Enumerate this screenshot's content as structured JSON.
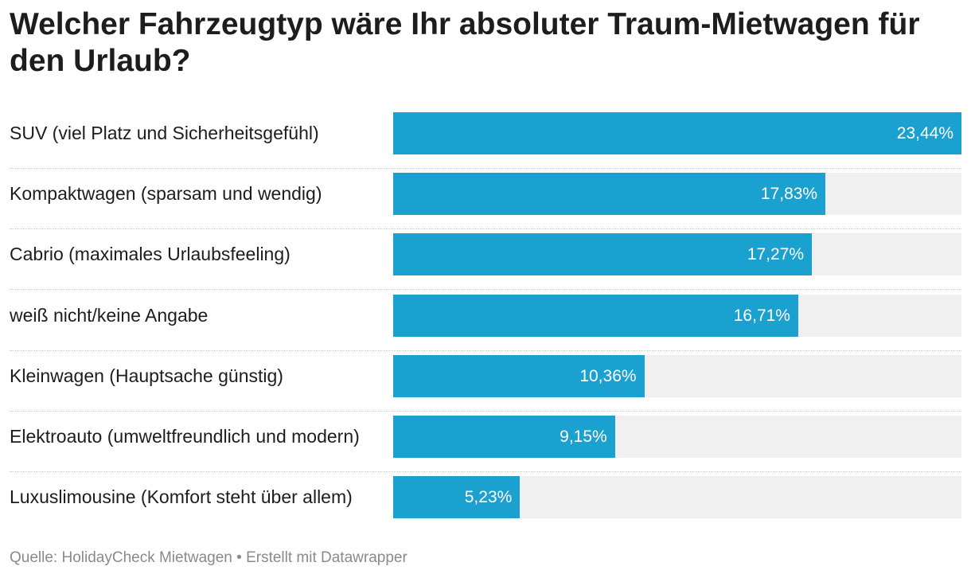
{
  "chart_data": {
    "type": "bar",
    "orientation": "horizontal",
    "title": "Welcher Fahrzeugtyp wäre Ihr absoluter Traum-Mietwagen für den Urlaub?",
    "categories": [
      "SUV (viel Platz und Sicherheitsgefühl)",
      "Kompaktwagen (sparsam und wendig)",
      "Cabrio (maximales Urlaubsfeeling)",
      "weiß nicht/keine Angabe",
      "Kleinwagen (Hauptsache günstig)",
      "Elektroauto (umweltfreundlich und modern)",
      "Luxuslimousine (Komfort steht über allem)"
    ],
    "values": [
      23.44,
      17.83,
      17.27,
      16.71,
      10.36,
      9.15,
      5.23
    ],
    "value_labels": [
      "23,44%",
      "17,83%",
      "17,27%",
      "16,71%",
      "10,36%",
      "9,15%",
      "5,23%"
    ],
    "unit": "%",
    "xlim": [
      0,
      23.44
    ],
    "grid": false,
    "legend": "none",
    "bar_color": "#1ba1cf",
    "track_color": "#f0f0f0",
    "source": "Quelle: HolidayCheck Mietwagen • Erstellt mit Datawrapper"
  }
}
